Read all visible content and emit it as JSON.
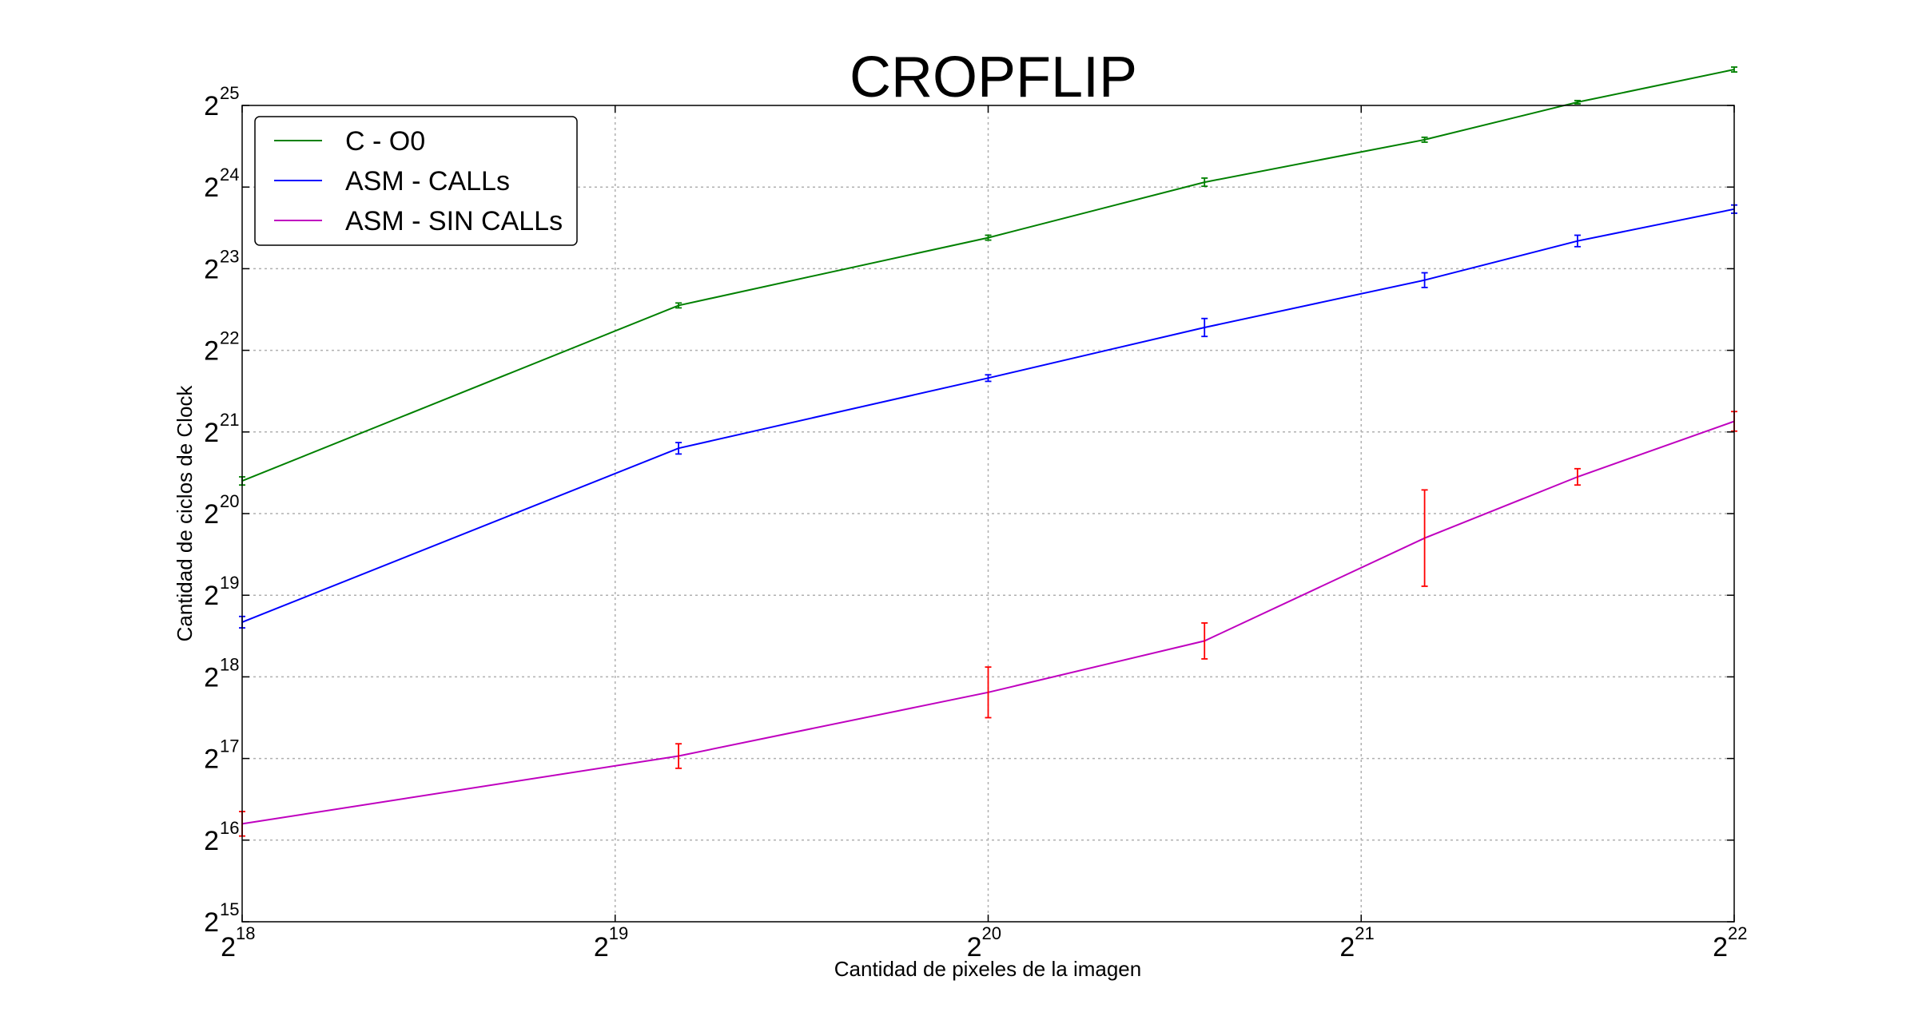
{
  "chart_data": {
    "type": "line",
    "title": "CROPFLIP",
    "xlabel": "Cantidad de pixeles de la imagen",
    "ylabel": "Cantidad de ciclos de Clock",
    "xscale": "log2",
    "yscale": "log2",
    "x_exponent_range": [
      18,
      22
    ],
    "y_exponent_range": [
      15,
      25
    ],
    "x_ticks": [
      {
        "base": "2",
        "exp": "18"
      },
      {
        "base": "2",
        "exp": "19"
      },
      {
        "base": "2",
        "exp": "20"
      },
      {
        "base": "2",
        "exp": "21"
      },
      {
        "base": "2",
        "exp": "22"
      }
    ],
    "y_ticks": [
      {
        "base": "2",
        "exp": "15"
      },
      {
        "base": "2",
        "exp": "16"
      },
      {
        "base": "2",
        "exp": "17"
      },
      {
        "base": "2",
        "exp": "18"
      },
      {
        "base": "2",
        "exp": "19"
      },
      {
        "base": "2",
        "exp": "20"
      },
      {
        "base": "2",
        "exp": "21"
      },
      {
        "base": "2",
        "exp": "22"
      },
      {
        "base": "2",
        "exp": "23"
      },
      {
        "base": "2",
        "exp": "24"
      },
      {
        "base": "2",
        "exp": "25"
      }
    ],
    "grid": true,
    "legend_position": "top-left",
    "x_log2": [
      18.0,
      19.17,
      20.0,
      20.58,
      21.17,
      21.58,
      22.0
    ],
    "series": [
      {
        "name": "C - O0",
        "color": "#008000",
        "errcolor": "#008000",
        "y_log2": [
          20.4,
          22.55,
          23.38,
          24.06,
          24.58,
          25.04,
          25.44
        ],
        "err_log2": [
          0.05,
          0.03,
          0.03,
          0.05,
          0.03,
          0.02,
          0.03
        ]
      },
      {
        "name": "ASM - CALLs",
        "color": "#0000ff",
        "errcolor": "#0000ff",
        "y_log2": [
          18.67,
          20.8,
          21.66,
          22.28,
          22.86,
          23.34,
          23.73
        ],
        "err_log2": [
          0.07,
          0.07,
          0.04,
          0.11,
          0.09,
          0.07,
          0.05
        ]
      },
      {
        "name": "ASM - SIN CALLs",
        "color": "#bf00bf",
        "errcolor": "#ff0000",
        "y_log2": [
          16.2,
          17.03,
          17.81,
          18.44,
          19.7,
          20.45,
          21.13
        ],
        "err_log2": [
          0.15,
          0.15,
          0.31,
          0.22,
          0.59,
          0.1,
          0.12
        ]
      }
    ]
  }
}
